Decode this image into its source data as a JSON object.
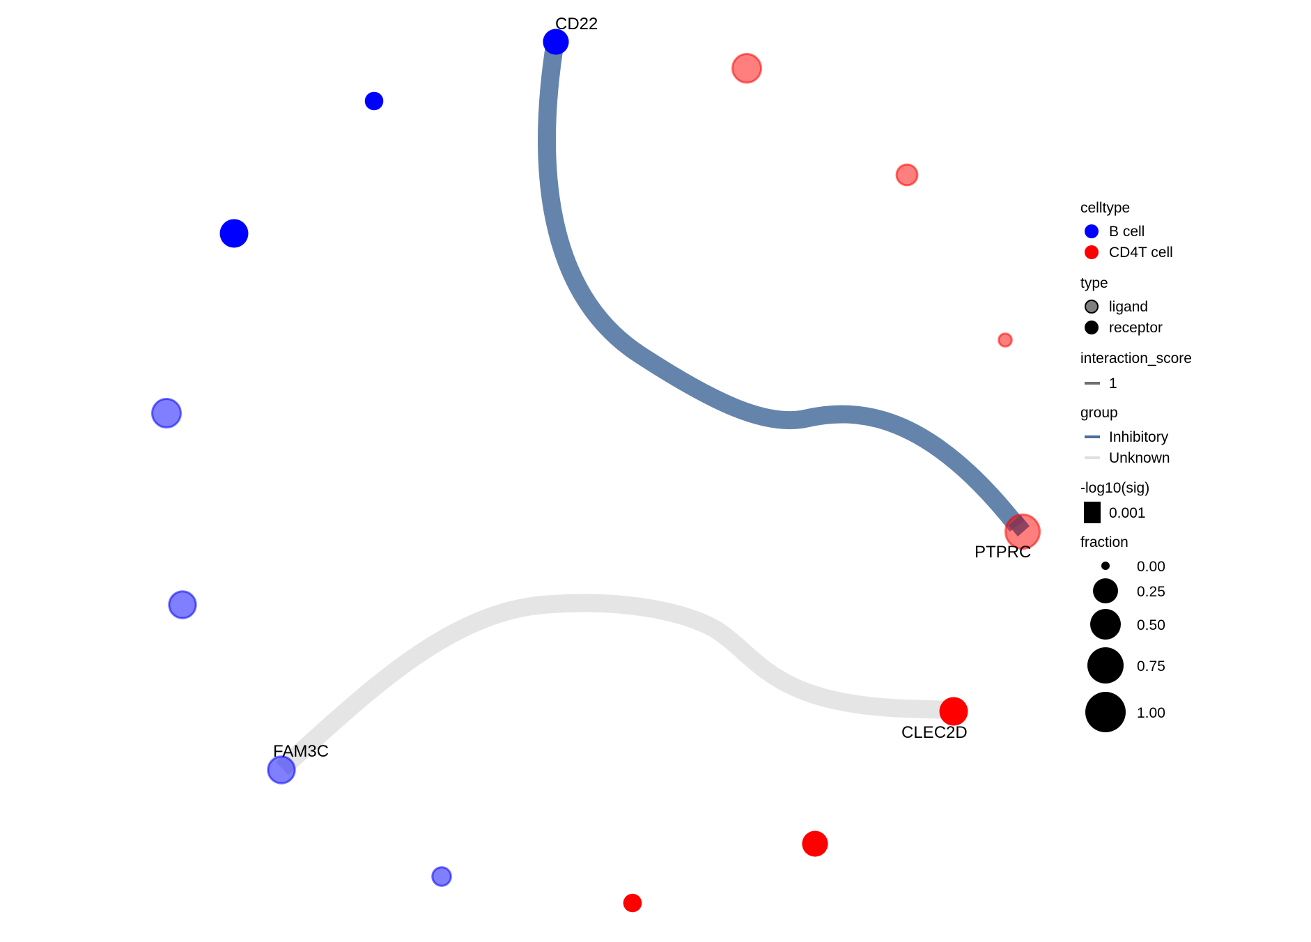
{
  "chart_data": {
    "type": "network",
    "colors": {
      "B cell": "#0000FF",
      "CD4T cell": "#FF0000",
      "Inhibitory": "#4A6E9E",
      "Unknown": "#E5E5E5"
    },
    "nodes": [
      {
        "id": "CD22",
        "label": "CD22",
        "celltype": "B cell",
        "type": "receptor",
        "fraction": 0.3
      },
      {
        "id": "b2",
        "label": "",
        "celltype": "B cell",
        "type": "receptor",
        "fraction": 0.1
      },
      {
        "id": "b3",
        "label": "",
        "celltype": "B cell",
        "type": "receptor",
        "fraction": 0.4
      },
      {
        "id": "b4",
        "label": "",
        "celltype": "B cell",
        "type": "ligand",
        "fraction": 0.4
      },
      {
        "id": "b5",
        "label": "",
        "celltype": "B cell",
        "type": "ligand",
        "fraction": 0.33
      },
      {
        "id": "FAM3C",
        "label": "FAM3C",
        "celltype": "B cell",
        "type": "ligand",
        "fraction": 0.33
      },
      {
        "id": "b7",
        "label": "",
        "celltype": "B cell",
        "type": "ligand",
        "fraction": 0.1
      },
      {
        "id": "r1",
        "label": "",
        "celltype": "CD4T cell",
        "type": "ligand",
        "fraction": 0.4
      },
      {
        "id": "r2",
        "label": "",
        "celltype": "CD4T cell",
        "type": "ligand",
        "fraction": 0.15
      },
      {
        "id": "r3",
        "label": "",
        "celltype": "CD4T cell",
        "type": "ligand",
        "fraction": 0.02
      },
      {
        "id": "PTPRC",
        "label": "PTPRC",
        "celltype": "CD4T cell",
        "type": "ligand",
        "fraction": 0.65
      },
      {
        "id": "CLEC2D",
        "label": "CLEC2D",
        "celltype": "CD4T cell",
        "type": "receptor",
        "fraction": 0.4
      },
      {
        "id": "r5",
        "label": "",
        "celltype": "CD4T cell",
        "type": "receptor",
        "fraction": 0.3
      },
      {
        "id": "r6",
        "label": "",
        "celltype": "CD4T cell",
        "type": "receptor",
        "fraction": 0.1
      }
    ],
    "edges": [
      {
        "from": "CD22",
        "to": "PTPRC",
        "group": "Inhibitory",
        "interaction_score": 1,
        "neg_log10_sig": 0.001
      },
      {
        "from": "FAM3C",
        "to": "CLEC2D",
        "group": "Unknown",
        "interaction_score": 1,
        "neg_log10_sig": 0.001
      }
    ],
    "legend": {
      "celltype": {
        "title": "celltype",
        "items": [
          "B cell",
          "CD4T cell"
        ]
      },
      "type": {
        "title": "type",
        "items": [
          "ligand",
          "receptor"
        ]
      },
      "interaction_score": {
        "title": "interaction_score",
        "items": [
          "1"
        ]
      },
      "group": {
        "title": "group",
        "items": [
          "Inhibitory",
          "Unknown"
        ]
      },
      "sig": {
        "title": "-log10(sig)",
        "items": [
          "0.001"
        ]
      },
      "fraction": {
        "title": "fraction",
        "items": [
          "0.00",
          "0.25",
          "0.50",
          "0.75",
          "1.00"
        ]
      }
    }
  }
}
